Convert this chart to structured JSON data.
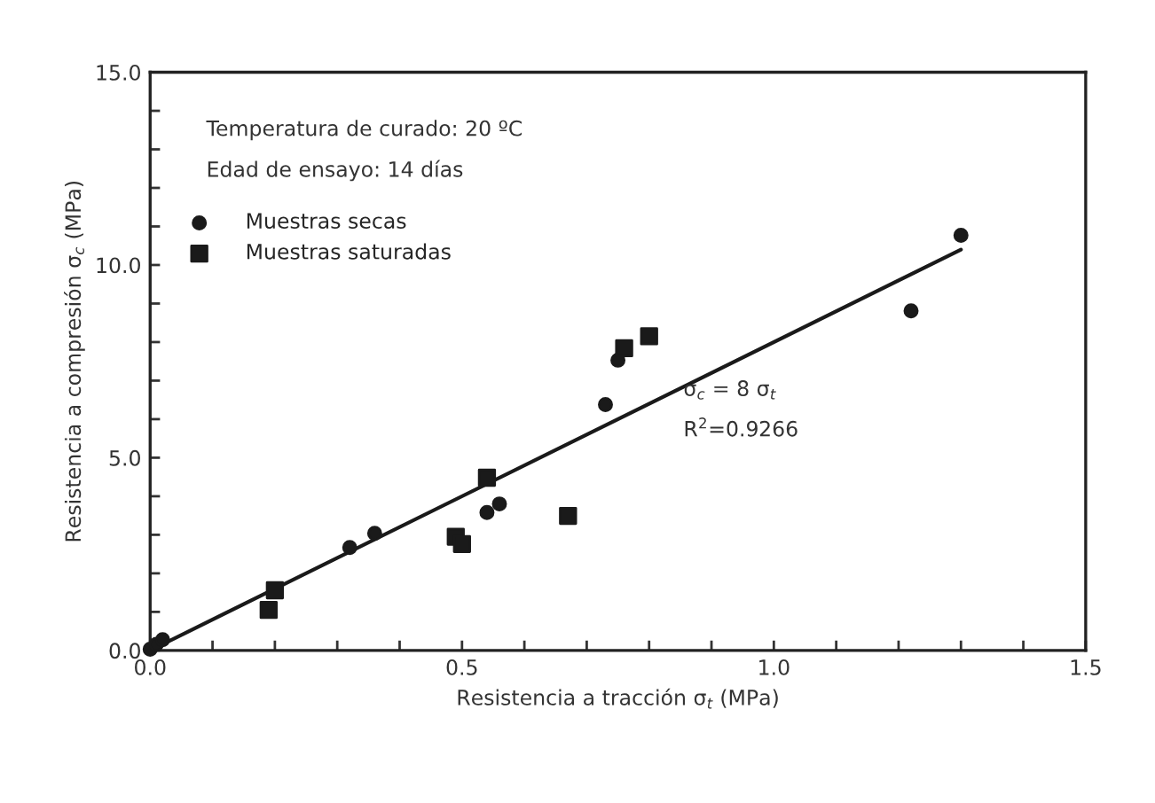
{
  "chart_data": {
    "type": "scatter",
    "xlabel": "Resistencia a tracción σ$_{t}$ (MPa)",
    "ylabel": "Resistencia a compresión σ$_{c}$ (MPa)",
    "annotations": [
      "Temperatura de curado: 20 ºC",
      "Edad de ensayo: 14 días",
      "σ$_{c}$ = 8 σ$_{t}$",
      "R$^{2}$=0.9266"
    ],
    "xlim": [
      0,
      1.5
    ],
    "ylim": [
      0,
      15
    ],
    "xticks": [
      {
        "value": 0,
        "label": "0.0"
      },
      {
        "value": 0.1,
        "label": null
      },
      {
        "value": 0.2,
        "label": null
      },
      {
        "value": 0.3,
        "label": null
      },
      {
        "value": 0.4,
        "label": null
      },
      {
        "value": 0.5,
        "label": "0.5"
      },
      {
        "value": 0.6,
        "label": null
      },
      {
        "value": 0.7,
        "label": null
      },
      {
        "value": 0.8,
        "label": null
      },
      {
        "value": 0.9,
        "label": null
      },
      {
        "value": 1.0,
        "label": "1.0"
      },
      {
        "value": 1.1,
        "label": null
      },
      {
        "value": 1.2,
        "label": null
      },
      {
        "value": 1.3,
        "label": null
      },
      {
        "value": 1.4,
        "label": null
      },
      {
        "value": 1.5,
        "label": "1.5"
      }
    ],
    "yticks": [
      {
        "value": 0,
        "label": "0.0"
      },
      {
        "value": 1,
        "label": null
      },
      {
        "value": 2,
        "label": null
      },
      {
        "value": 3,
        "label": null
      },
      {
        "value": 4,
        "label": null
      },
      {
        "value": 5,
        "label": "5.0"
      },
      {
        "value": 6,
        "label": null
      },
      {
        "value": 7,
        "label": null
      },
      {
        "value": 8,
        "label": null
      },
      {
        "value": 9,
        "label": null
      },
      {
        "value": 10,
        "label": "10.0"
      },
      {
        "value": 11,
        "label": null
      },
      {
        "value": 12,
        "label": null
      },
      {
        "value": 13,
        "label": null
      },
      {
        "value": 14,
        "label": null
      },
      {
        "value": 15,
        "label": "15.0"
      }
    ],
    "grid": false,
    "legend": "top left",
    "series": [
      {
        "name": "Muestras secas",
        "color": "#1a1a1a",
        "marker": "circle",
        "x": [
          0.0,
          0.01,
          0.02,
          0.32,
          0.36,
          0.54,
          0.56,
          0.73,
          0.75,
          1.22,
          1.3
        ],
        "values": [
          0.03,
          0.16,
          0.28,
          2.67,
          3.04,
          3.58,
          3.8,
          6.38,
          7.53,
          8.81,
          10.77
        ]
      },
      {
        "name": "Muestras saturadas",
        "color": "#1a1a1a",
        "marker": "square",
        "x": [
          0.19,
          0.2,
          0.49,
          0.5,
          0.54,
          0.67,
          0.76,
          0.8
        ],
        "values": [
          1.05,
          1.56,
          2.95,
          2.76,
          4.48,
          3.49,
          7.84,
          8.15
        ]
      },
      {
        "type": "line",
        "color": "#1a1a1a",
        "marker": "none",
        "line_style": "solid",
        "x": [
          0,
          1.3
        ],
        "values": [
          0,
          10.4
        ]
      }
    ]
  }
}
